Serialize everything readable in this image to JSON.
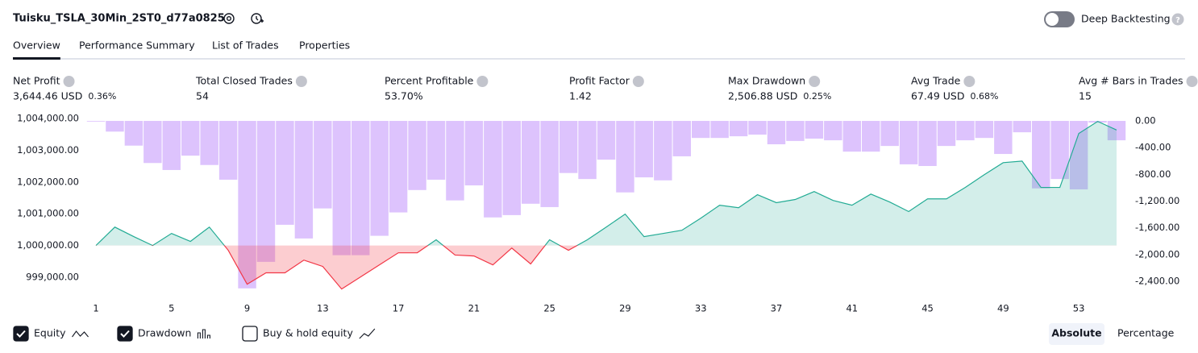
{
  "header": {
    "title": "Tuisku_TSLA_30Min_2ST0_d77a0825",
    "toggle_label": "Deep Backtesting"
  },
  "tabs": [
    "Overview",
    "Performance Summary",
    "List of Trades",
    "Properties"
  ],
  "metrics": [
    {
      "label": "Net Profit",
      "value": "3,644.46 USD",
      "percent": "0.36%",
      "color": "#089981"
    },
    {
      "label": "Total Closed Trades",
      "value": "54",
      "color": "#131722"
    },
    {
      "label": "Percent Profitable",
      "value": "53.70%",
      "color": "#089981"
    },
    {
      "label": "Profit Factor",
      "value": "1.42",
      "color": "#089981"
    },
    {
      "label": "Max Drawdown",
      "value": "2,506.88 USD",
      "percent": "0.25%",
      "color": "#f23645"
    },
    {
      "label": "Avg Trade",
      "value": "67.49 USD",
      "percent": "0.68%",
      "color": "#089981"
    },
    {
      "label": "Avg # Bars in Trades",
      "value": "15",
      "color": "#131722"
    }
  ],
  "chart_data": {
    "type": "equity_drawdown",
    "x": [
      1,
      2,
      3,
      4,
      5,
      6,
      7,
      8,
      9,
      10,
      11,
      12,
      13,
      14,
      15,
      16,
      17,
      18,
      19,
      20,
      21,
      22,
      23,
      24,
      25,
      26,
      27,
      28,
      29,
      30,
      31,
      32,
      33,
      34,
      35,
      36,
      37,
      38,
      39,
      40,
      41,
      42,
      43,
      44,
      45,
      46,
      47,
      48,
      49,
      50,
      51,
      52,
      53,
      54,
      55
    ],
    "xlim": [
      1,
      55
    ],
    "xticks": [
      1,
      5,
      9,
      13,
      17,
      21,
      25,
      29,
      33,
      37,
      41,
      45,
      49,
      53
    ],
    "ylim": [
      998340,
      1004180
    ],
    "yticks": [
      {
        "value": 1004000,
        "label": "1,004,000.00"
      },
      {
        "value": 1003000,
        "label": "1,003,000.00"
      },
      {
        "value": 1002000,
        "label": "1,002,000.00"
      },
      {
        "value": 1001000,
        "label": "1,001,000.00"
      },
      {
        "value": 1000000,
        "label": "1,000,000.00"
      },
      {
        "value": 999000,
        "label": "999,000.00"
      }
    ],
    "y2lim": [
      -2654,
      121
    ],
    "y2ticks": [
      {
        "value": 0,
        "label": "0.00"
      },
      {
        "value": -400,
        "label": "-400.00"
      },
      {
        "value": -800,
        "label": "-800.00"
      },
      {
        "value": -1200,
        "label": "-1,200.00"
      },
      {
        "value": -1600,
        "label": "-1,600.00"
      },
      {
        "value": -2000,
        "label": "-2,000.00"
      },
      {
        "value": -2400,
        "label": "-2,400.00"
      }
    ],
    "series": [
      {
        "name": "Equity",
        "color": "#22ab94",
        "negative_color": "#f23645",
        "values": [
          1000000,
          1000580,
          1000280,
          1000000,
          1000380,
          1000130,
          1000580,
          999850,
          998780,
          999140,
          999140,
          999540,
          999340,
          998630,
          999010,
          999390,
          999770,
          999770,
          1000180,
          999700,
          999670,
          999390,
          999920,
          999420,
          1000180,
          999850,
          1000180,
          1000580,
          1000990,
          1000280,
          1000380,
          1000480,
          1000860,
          1001270,
          1001190,
          1001600,
          1001350,
          1001450,
          1001700,
          1001420,
          1001270,
          1001620,
          1001370,
          1001070,
          1001470,
          1001470,
          1001830,
          1002230,
          1002610,
          1002660,
          1001830,
          1001830,
          1003530,
          1003910,
          1003640
        ]
      },
      {
        "name": "Drawdown",
        "color": "#c79bfb",
        "axis": "y2",
        "values": [
          -10,
          -160,
          -370,
          -630,
          -735,
          -520,
          -660,
          -880,
          -2507,
          -2110,
          -1555,
          -1760,
          -1310,
          -2010,
          -2010,
          -1720,
          -1370,
          -1035,
          -880,
          -1190,
          -965,
          -1445,
          -1410,
          -1240,
          -1290,
          -780,
          -870,
          -580,
          -1070,
          -845,
          -890,
          -530,
          -255,
          -255,
          -230,
          -205,
          -350,
          -300,
          -265,
          -290,
          -460,
          -460,
          -375,
          -650,
          -675,
          -375,
          -290,
          -255,
          -495,
          -170,
          -1010,
          -870,
          -1025,
          -25,
          -290
        ]
      },
      {
        "name": "Buy & hold equity",
        "visible": false
      }
    ]
  },
  "view_buttons": [
    "Absolute",
    "Percentage"
  ]
}
